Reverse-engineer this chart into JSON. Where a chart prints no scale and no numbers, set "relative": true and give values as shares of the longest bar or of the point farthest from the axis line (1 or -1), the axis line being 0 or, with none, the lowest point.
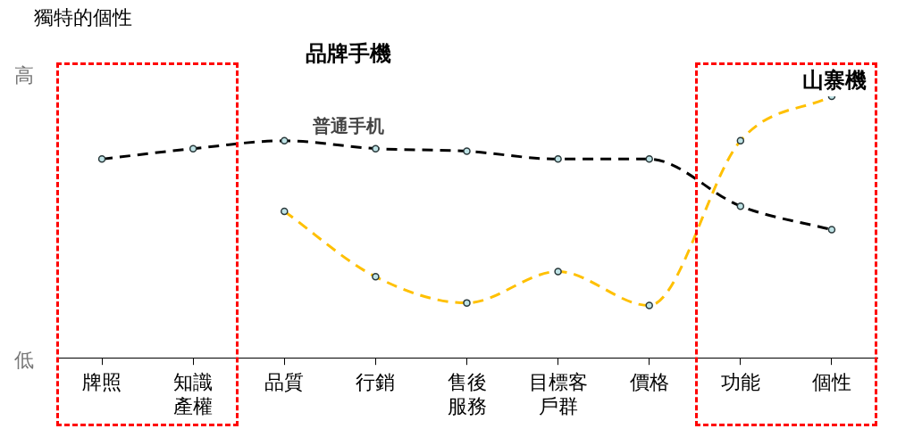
{
  "chart_data": {
    "type": "line",
    "title": "獨特的個性",
    "relative": true,
    "line_style": "dashed",
    "marker": "circle",
    "legend": false,
    "categories": [
      "牌照",
      "知識產權",
      "品質",
      "行銷",
      "售後服務",
      "目標客戶群",
      "價格",
      "功能",
      "個性"
    ],
    "series": [
      {
        "name": "普通手机",
        "color": "#000000",
        "values": [
          0.76,
          0.8,
          0.83,
          0.8,
          0.79,
          0.76,
          0.76,
          0.58,
          0.49
        ]
      },
      {
        "color": "#ffc000",
        "values": [
          null,
          null,
          0.56,
          0.31,
          0.21,
          0.33,
          0.2,
          0.83,
          1
        ]
      }
    ],
    "annotations": [
      "品牌手機",
      "山寨機",
      "高",
      "低"
    ]
  }
}
